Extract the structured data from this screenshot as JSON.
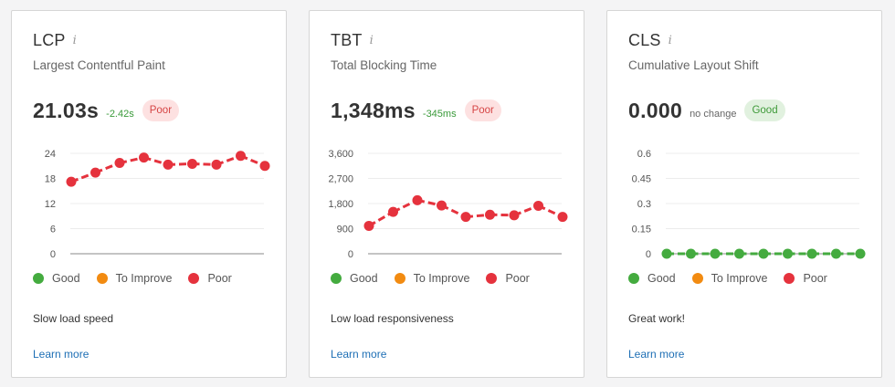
{
  "legend": {
    "items": [
      {
        "label": "Good",
        "color": "#44ab3f"
      },
      {
        "label": "To Improve",
        "color": "#f28b11"
      },
      {
        "label": "Poor",
        "color": "#e5323d"
      }
    ]
  },
  "learn_more_label": "Learn more",
  "cards": [
    {
      "title": "LCP",
      "subtitle": "Largest Contentful Paint",
      "value": "21.03s",
      "delta": "-2.42s",
      "badge": "Poor",
      "note": "Slow load speed"
    },
    {
      "title": "TBT",
      "subtitle": "Total Blocking Time",
      "value": "1,348ms",
      "delta": "-345ms",
      "badge": "Poor",
      "note": "Low load responsiveness"
    },
    {
      "title": "CLS",
      "subtitle": "Cumulative Layout Shift",
      "value": "0.000",
      "delta": "no change",
      "badge": "Good",
      "note": "Great work!"
    }
  ],
  "chart_data": [
    {
      "type": "line",
      "ylim": [
        0,
        24
      ],
      "y_ticks": [
        "24",
        "18",
        "12",
        "6",
        "0"
      ],
      "y_tick_values": [
        24,
        18,
        12,
        6,
        0
      ],
      "series": [
        {
          "color": "#e5323d",
          "values": [
            17.2,
            19.4,
            21.7,
            23.0,
            21.3,
            21.5,
            21.3,
            23.4,
            21.0
          ]
        }
      ]
    },
    {
      "type": "line",
      "ylim": [
        0,
        3600
      ],
      "y_ticks": [
        "3,600",
        "2,700",
        "1,800",
        "900",
        "0"
      ],
      "y_tick_values": [
        3600,
        2700,
        1800,
        900,
        0
      ],
      "series": [
        {
          "color": "#e5323d",
          "values": [
            1000,
            1500,
            1920,
            1730,
            1320,
            1400,
            1380,
            1720,
            1320
          ]
        }
      ]
    },
    {
      "type": "line",
      "ylim": [
        0,
        0.6
      ],
      "y_ticks": [
        "0.6",
        "0.45",
        "0.3",
        "0.15",
        "0"
      ],
      "y_tick_values": [
        0.6,
        0.45,
        0.3,
        0.15,
        0
      ],
      "series": [
        {
          "color": "#44ab3f",
          "values": [
            0,
            0,
            0,
            0,
            0,
            0,
            0,
            0,
            0
          ]
        }
      ]
    }
  ]
}
